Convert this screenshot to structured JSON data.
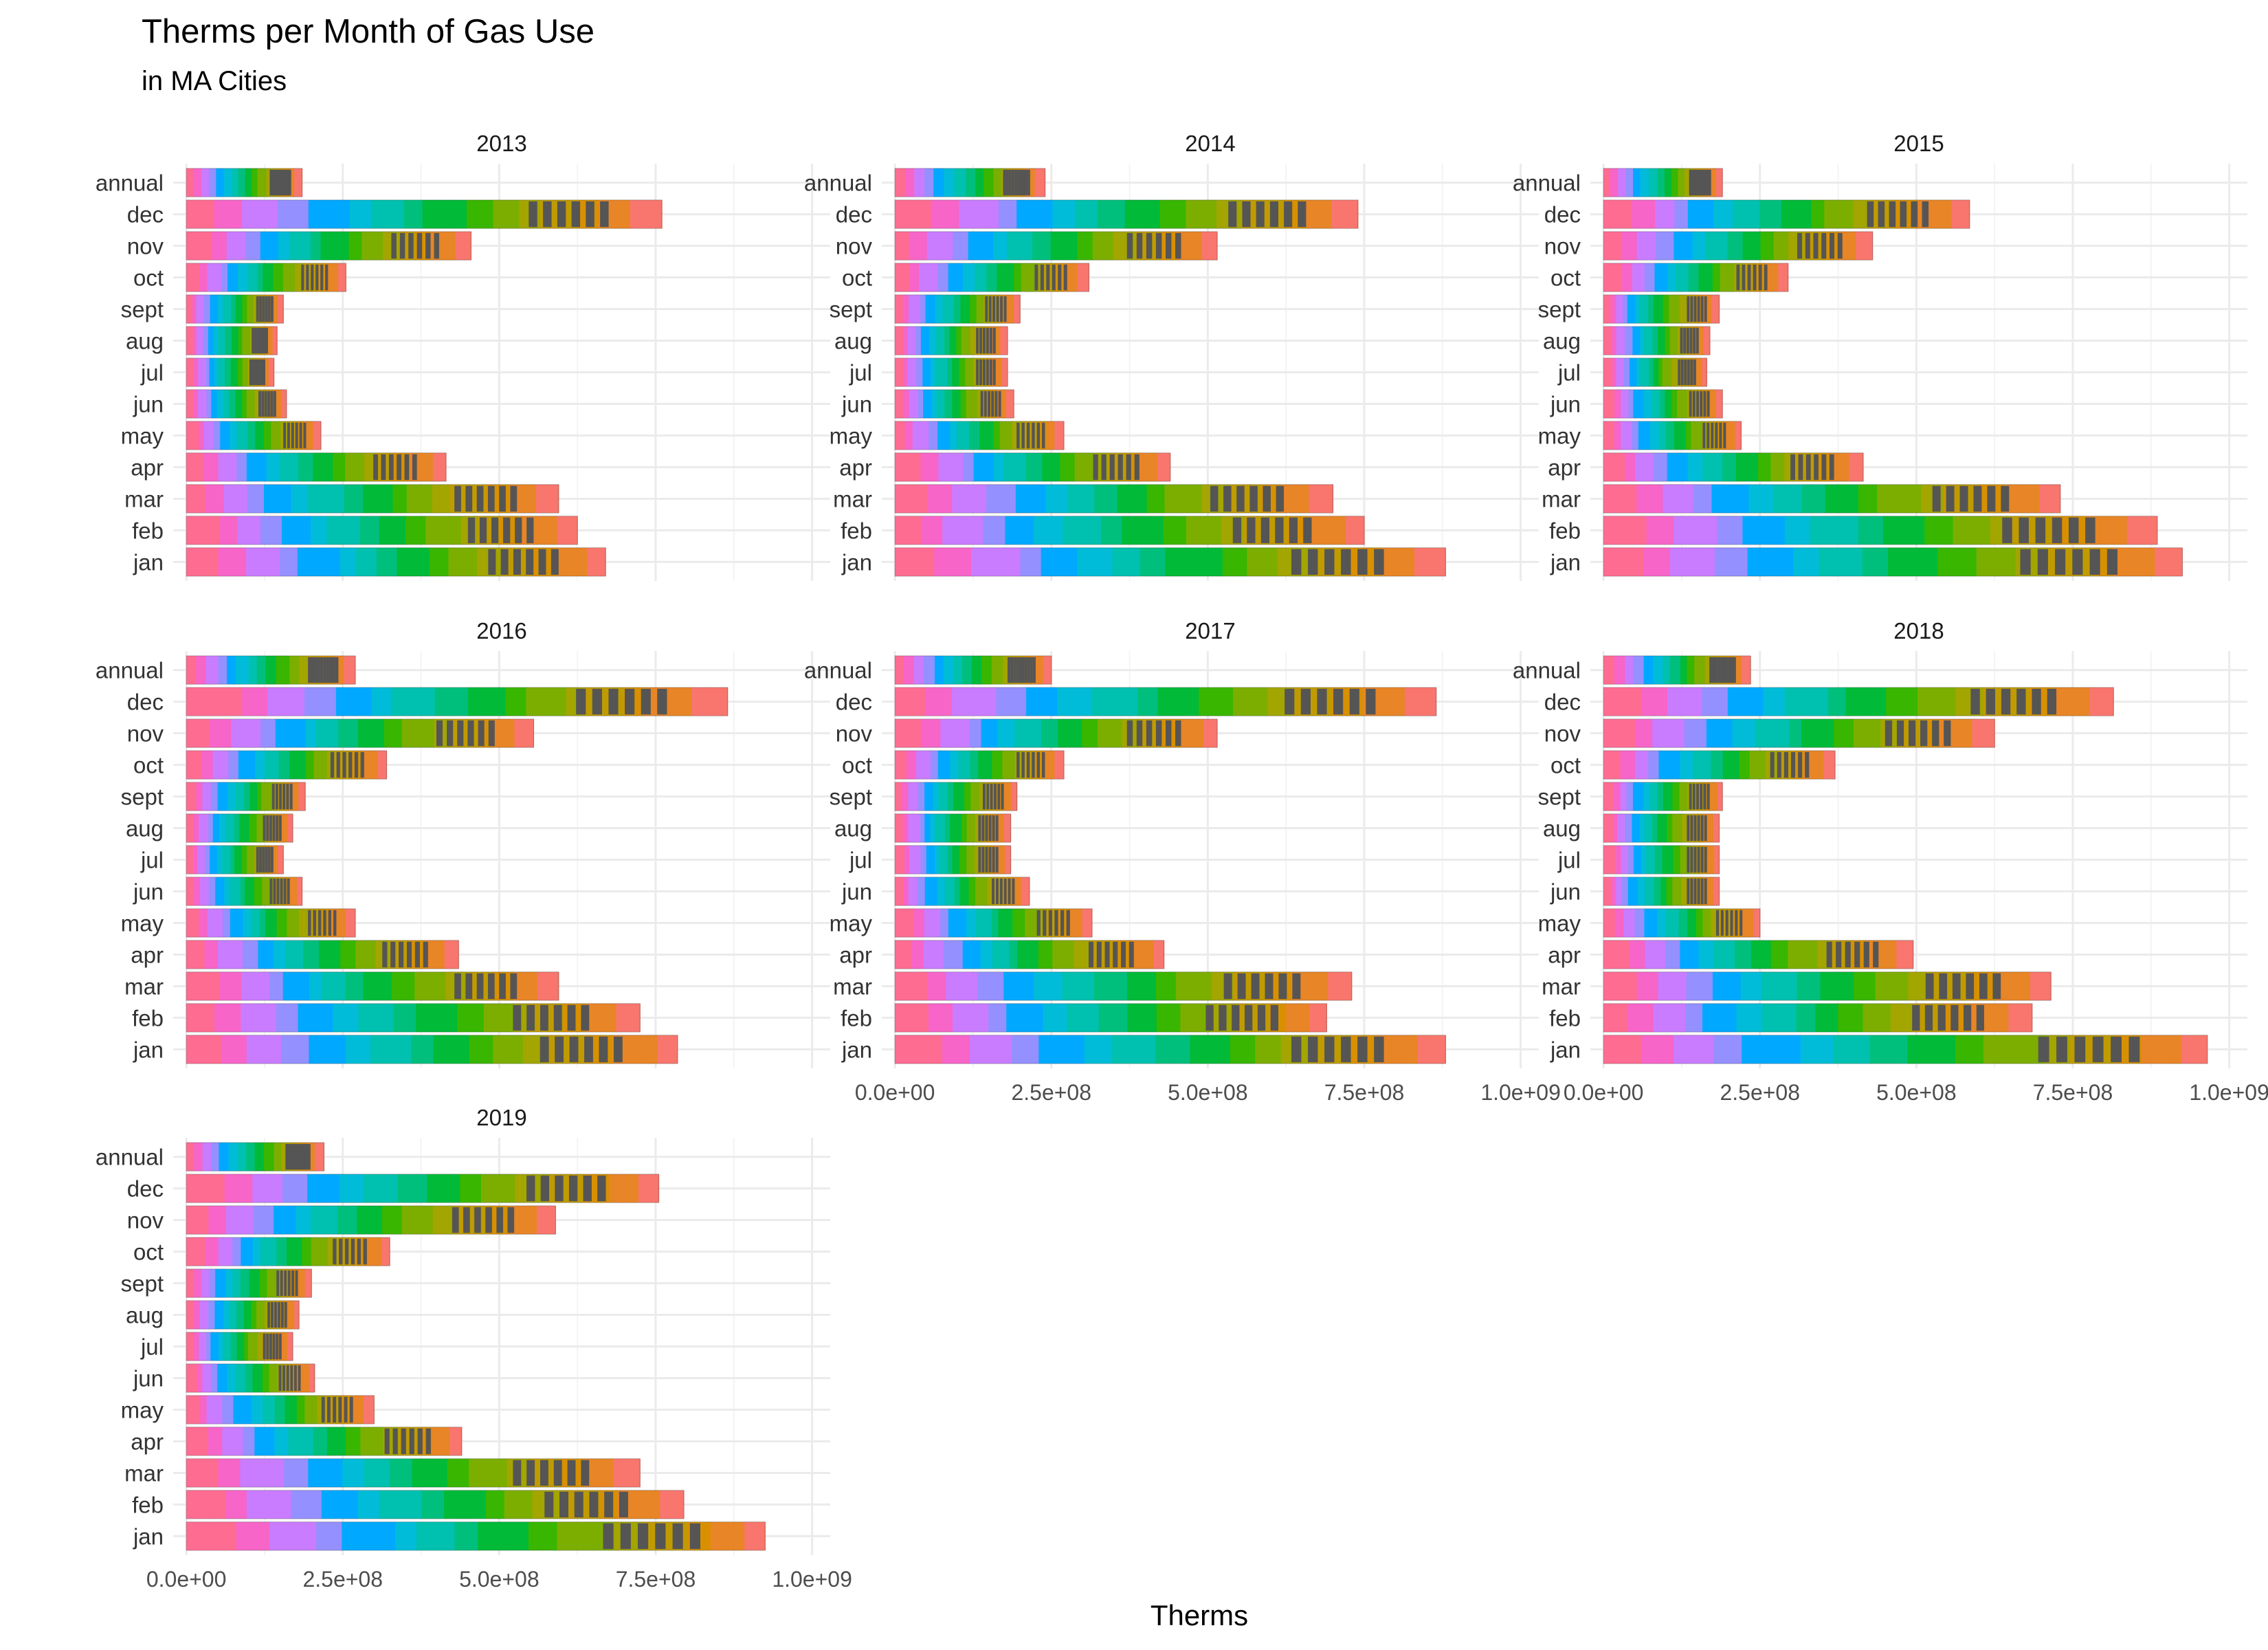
{
  "chart_data": {
    "type": "bar",
    "title": "Therms per Month of Gas Use",
    "subtitle": "in MA Cities",
    "xlabel": "Therms",
    "ylabel": "",
    "orientation": "horizontal",
    "stacked": true,
    "legend": "none",
    "grid": true,
    "xlim": [
      0,
      1000000000
    ],
    "x_ticks": [
      "0.0e+00",
      "2.5e+08",
      "5.0e+08",
      "7.5e+08",
      "1.0e+09"
    ],
    "categories": [
      "annual",
      "dec",
      "nov",
      "oct",
      "sept",
      "aug",
      "jul",
      "jun",
      "may",
      "apr",
      "mar",
      "feb",
      "jan"
    ],
    "fill_colors": [
      "#FF6C91",
      "#F665C7",
      "#C97CFF",
      "#9590FF",
      "#00A9FF",
      "#00BCD8",
      "#00C0AF",
      "#00BF7D",
      "#00BA38",
      "#39B600",
      "#7CAE00",
      "#A3A500",
      "#C09B00",
      "#D89000",
      "#E88526",
      "#F8766D"
    ],
    "panels": [
      {
        "year": "2013",
        "values": [
          185000000,
          760000000,
          455000000,
          255000000,
          155000000,
          145000000,
          140000000,
          160000000,
          215000000,
          415000000,
          595000000,
          625000000,
          670000000
        ]
      },
      {
        "year": "2014",
        "values": [
          240000000,
          740000000,
          515000000,
          310000000,
          200000000,
          180000000,
          180000000,
          190000000,
          270000000,
          440000000,
          700000000,
          750000000,
          880000000
        ]
      },
      {
        "year": "2015",
        "values": [
          190000000,
          585000000,
          430000000,
          295000000,
          185000000,
          170000000,
          165000000,
          190000000,
          220000000,
          415000000,
          730000000,
          885000000,
          925000000
        ]
      },
      {
        "year": "2016",
        "values": [
          270000000,
          865000000,
          555000000,
          320000000,
          190000000,
          170000000,
          155000000,
          185000000,
          270000000,
          435000000,
          595000000,
          725000000,
          785000000
        ]
      },
      {
        "year": "2017",
        "values": [
          250000000,
          865000000,
          515000000,
          270000000,
          195000000,
          185000000,
          185000000,
          215000000,
          315000000,
          430000000,
          730000000,
          690000000,
          880000000
        ]
      },
      {
        "year": "2018",
        "values": [
          235000000,
          815000000,
          625000000,
          370000000,
          190000000,
          185000000,
          185000000,
          185000000,
          250000000,
          495000000,
          715000000,
          685000000,
          965000000
        ]
      },
      {
        "year": "2019",
        "values": [
          220000000,
          755000000,
          590000000,
          325000000,
          200000000,
          180000000,
          170000000,
          205000000,
          300000000,
          440000000,
          725000000,
          795000000,
          925000000
        ]
      }
    ]
  }
}
